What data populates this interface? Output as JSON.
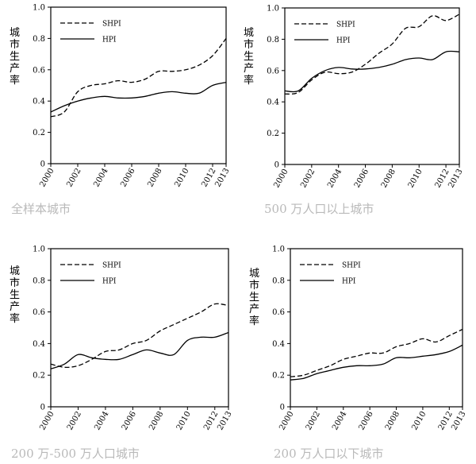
{
  "chart_data": [
    {
      "type": "line",
      "title": "全样本城市",
      "xlabel": "",
      "ylabel": "城市生产率",
      "x": [
        2000,
        2001,
        2002,
        2003,
        2004,
        2005,
        2006,
        2007,
        2008,
        2009,
        2010,
        2011,
        2012,
        2013
      ],
      "xticks": [
        "2000",
        "2002",
        "2004",
        "2006",
        "2008",
        "2010",
        "2012",
        "2013"
      ],
      "yticks": [
        "0",
        "0.2",
        "0.4",
        "0.6",
        "0.8",
        "1.0"
      ],
      "ylim": [
        0,
        1.0
      ],
      "legend": "top-left",
      "series": [
        {
          "name": "SHPI",
          "style": "dashed",
          "values": [
            0.3,
            0.33,
            0.46,
            0.5,
            0.51,
            0.53,
            0.52,
            0.54,
            0.59,
            0.59,
            0.6,
            0.63,
            0.69,
            0.8
          ]
        },
        {
          "name": "HPI",
          "style": "solid",
          "values": [
            0.33,
            0.37,
            0.4,
            0.42,
            0.43,
            0.42,
            0.42,
            0.43,
            0.45,
            0.46,
            0.45,
            0.45,
            0.5,
            0.52
          ]
        }
      ]
    },
    {
      "type": "line",
      "title": "500 万人口以上城市",
      "xlabel": "",
      "ylabel": "城市生产率",
      "x": [
        2000,
        2001,
        2002,
        2003,
        2004,
        2005,
        2006,
        2007,
        2008,
        2009,
        2010,
        2011,
        2012,
        2013
      ],
      "xticks": [
        "2000",
        "2002",
        "2004",
        "2006",
        "2008",
        "2010",
        "2012",
        "2013"
      ],
      "yticks": [
        "0",
        "0.2",
        "0.4",
        "0.6",
        "0.8",
        "1.0"
      ],
      "ylim": [
        0,
        1.0
      ],
      "legend": "top-left",
      "series": [
        {
          "name": "SHPI",
          "style": "dashed",
          "values": [
            0.45,
            0.46,
            0.54,
            0.59,
            0.58,
            0.59,
            0.64,
            0.71,
            0.77,
            0.87,
            0.88,
            0.95,
            0.92,
            0.96
          ]
        },
        {
          "name": "HPI",
          "style": "solid",
          "values": [
            0.47,
            0.47,
            0.55,
            0.6,
            0.62,
            0.61,
            0.61,
            0.62,
            0.64,
            0.67,
            0.68,
            0.67,
            0.72,
            0.72
          ]
        }
      ]
    },
    {
      "type": "line",
      "title": "200 万-500 万人口城市",
      "xlabel": "",
      "ylabel": "城市生产率",
      "x": [
        2000,
        2001,
        2002,
        2003,
        2004,
        2005,
        2006,
        2007,
        2008,
        2009,
        2010,
        2011,
        2012,
        2013
      ],
      "xticks": [
        "2000",
        "2002",
        "2004",
        "2006",
        "2008",
        "2010",
        "2012",
        "2013"
      ],
      "yticks": [
        "0",
        "0.2",
        "0.4",
        "0.6",
        "0.8",
        "1.0"
      ],
      "ylim": [
        0,
        1.0
      ],
      "legend": "top-left",
      "series": [
        {
          "name": "SHPI",
          "style": "dashed",
          "values": [
            0.27,
            0.25,
            0.26,
            0.3,
            0.35,
            0.36,
            0.4,
            0.42,
            0.48,
            0.52,
            0.56,
            0.6,
            0.65,
            0.64
          ]
        },
        {
          "name": "HPI",
          "style": "solid",
          "values": [
            0.24,
            0.27,
            0.33,
            0.31,
            0.3,
            0.3,
            0.33,
            0.36,
            0.34,
            0.33,
            0.42,
            0.44,
            0.44,
            0.47
          ]
        }
      ]
    },
    {
      "type": "line",
      "title": "200 万人口以下城市",
      "xlabel": "",
      "ylabel": "城市生产率",
      "x": [
        2000,
        2001,
        2002,
        2003,
        2004,
        2005,
        2006,
        2007,
        2008,
        2009,
        2010,
        2011,
        2012,
        2013
      ],
      "xticks": [
        "2000",
        "2002",
        "2004",
        "2006",
        "2008",
        "2010",
        "2012",
        "2013"
      ],
      "yticks": [
        "0",
        "0.2",
        "0.4",
        "0.6",
        "0.8",
        "1.0"
      ],
      "ylim": [
        0,
        1.0
      ],
      "legend": "top-left",
      "series": [
        {
          "name": "SHPI",
          "style": "dashed",
          "values": [
            0.19,
            0.2,
            0.23,
            0.26,
            0.3,
            0.32,
            0.34,
            0.34,
            0.38,
            0.4,
            0.43,
            0.41,
            0.45,
            0.49
          ]
        },
        {
          "name": "HPI",
          "style": "solid",
          "values": [
            0.17,
            0.18,
            0.21,
            0.23,
            0.25,
            0.26,
            0.26,
            0.27,
            0.31,
            0.31,
            0.32,
            0.33,
            0.35,
            0.39
          ]
        }
      ]
    }
  ],
  "captions": [
    "全样本城市",
    "500 万人口以上城市",
    "200 万-500 万人口城市",
    "200 万人口以下城市"
  ],
  "colors": {
    "line": "#000000",
    "caption": "#b9b9b9"
  }
}
